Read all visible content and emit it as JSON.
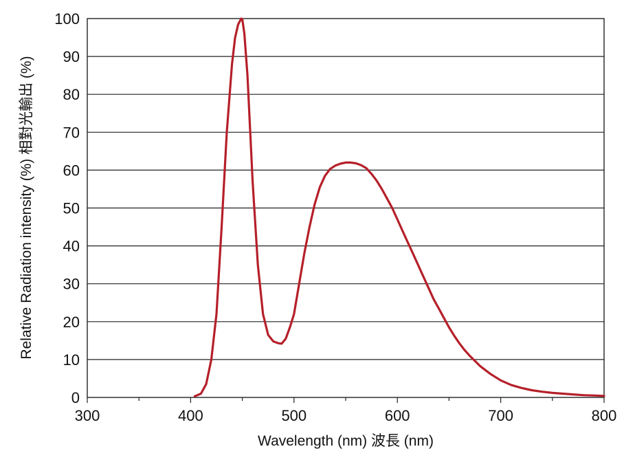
{
  "chart_data": {
    "type": "line",
    "xlabel": "Wavelength (nm) 波長 (nm)",
    "ylabel": "Relative Radiation intensity (%) 相對光輸出 (%)",
    "xlim": [
      300,
      800
    ],
    "ylim": [
      0,
      100
    ],
    "x_ticks": [
      300,
      400,
      500,
      600,
      700,
      800
    ],
    "y_ticks": [
      0,
      10,
      20,
      30,
      40,
      50,
      60,
      70,
      80,
      90,
      100
    ],
    "x_tick_labels": [
      "300",
      "400",
      "500",
      "600",
      "700",
      "800"
    ],
    "y_tick_labels": [
      "0",
      "10",
      "20",
      "30",
      "40",
      "50",
      "60",
      "70",
      "80",
      "90",
      "100"
    ],
    "grid": "horizontal",
    "line_color": "#b5202a",
    "series": [
      {
        "x": [
          404,
          410,
          415,
          420,
          425,
          430,
          435,
          440,
          443,
          446,
          449,
          450,
          452,
          455,
          460,
          465,
          470,
          475,
          480,
          485,
          488,
          492,
          496,
          500,
          505,
          510,
          515,
          520,
          525,
          530,
          535,
          540,
          545,
          550,
          555,
          560,
          565,
          570,
          575,
          580,
          585,
          590,
          595,
          600,
          605,
          610,
          615,
          620,
          625,
          630,
          635,
          640,
          645,
          650,
          655,
          660,
          665,
          670,
          680,
          690,
          700,
          710,
          720,
          730,
          740,
          750,
          760,
          770,
          780,
          790,
          800
        ],
        "y": [
          0.3,
          1,
          3.5,
          10,
          22,
          45,
          70,
          88,
          95,
          98.5,
          100,
          99.8,
          96,
          85,
          57,
          35,
          22,
          16.5,
          14.8,
          14.3,
          14.2,
          15.5,
          18.5,
          22,
          30,
          38,
          45,
          51,
          55.5,
          58.5,
          60.3,
          61.2,
          61.7,
          62,
          62,
          61.8,
          61.3,
          60.5,
          59,
          57.2,
          55,
          52.5,
          50,
          47,
          44,
          41,
          38,
          35,
          32,
          29,
          26,
          23.5,
          21,
          18.5,
          16.3,
          14.3,
          12.5,
          11,
          8.3,
          6.2,
          4.5,
          3.3,
          2.5,
          1.9,
          1.5,
          1.2,
          1,
          0.8,
          0.6,
          0.5,
          0.4
        ]
      }
    ]
  }
}
